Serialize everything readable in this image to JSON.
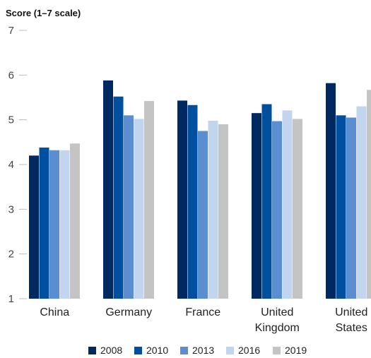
{
  "chart_data": {
    "type": "bar",
    "ylabel": "Score (1–7 scale)",
    "xlabel": "",
    "ylim": [
      1,
      7
    ],
    "yticks": [
      1,
      2,
      3,
      4,
      5,
      6,
      7
    ],
    "grid": false,
    "legend_position": "bottom",
    "categories": [
      [
        "China"
      ],
      [
        "Germany"
      ],
      [
        "France"
      ],
      [
        "United",
        "Kingdom"
      ],
      [
        "United",
        "States"
      ]
    ],
    "series": [
      {
        "name": "2008",
        "color": "#002960",
        "values": [
          4.2,
          5.88,
          5.43,
          5.15,
          5.82
        ]
      },
      {
        "name": "2010",
        "color": "#0150A0",
        "values": [
          4.38,
          5.52,
          5.33,
          5.35,
          5.1
        ]
      },
      {
        "name": "2013",
        "color": "#5A8ED0",
        "values": [
          4.32,
          5.1,
          4.75,
          4.97,
          5.05
        ]
      },
      {
        "name": "2016",
        "color": "#C2D4EE",
        "values": [
          4.32,
          5.02,
          4.98,
          5.21,
          5.3
        ]
      },
      {
        "name": "2019",
        "color": "#C4C4C4",
        "values": [
          4.47,
          5.42,
          4.9,
          5.02,
          5.67
        ]
      }
    ]
  }
}
